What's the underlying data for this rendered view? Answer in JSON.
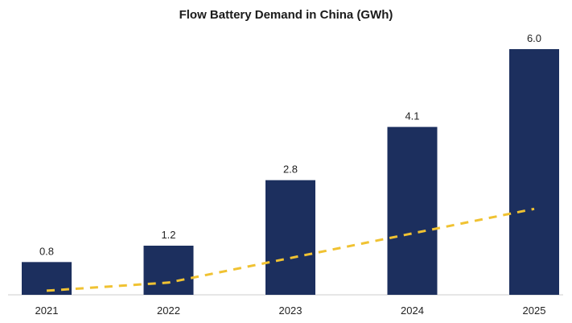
{
  "chart_data": {
    "type": "bar",
    "title": "Flow Battery Demand in China (GWh)",
    "categories": [
      "2021",
      "2022",
      "2023",
      "2024",
      "2025"
    ],
    "values": [
      0.8,
      1.2,
      2.8,
      4.1,
      6.0
    ],
    "value_labels": [
      "0.8",
      "1.2",
      "2.8",
      "4.1",
      "6.0"
    ],
    "trendline": {
      "style": "dashed",
      "values": [
        0.1,
        0.3,
        0.9,
        1.5,
        2.1
      ]
    },
    "xlabel": "",
    "ylabel": "",
    "ylim": [
      0,
      6.0
    ],
    "grid": false,
    "legend": "none",
    "colors": {
      "bar": "#1c2f5e",
      "trendline": "#f0c232",
      "axis": "#cccccc"
    }
  }
}
